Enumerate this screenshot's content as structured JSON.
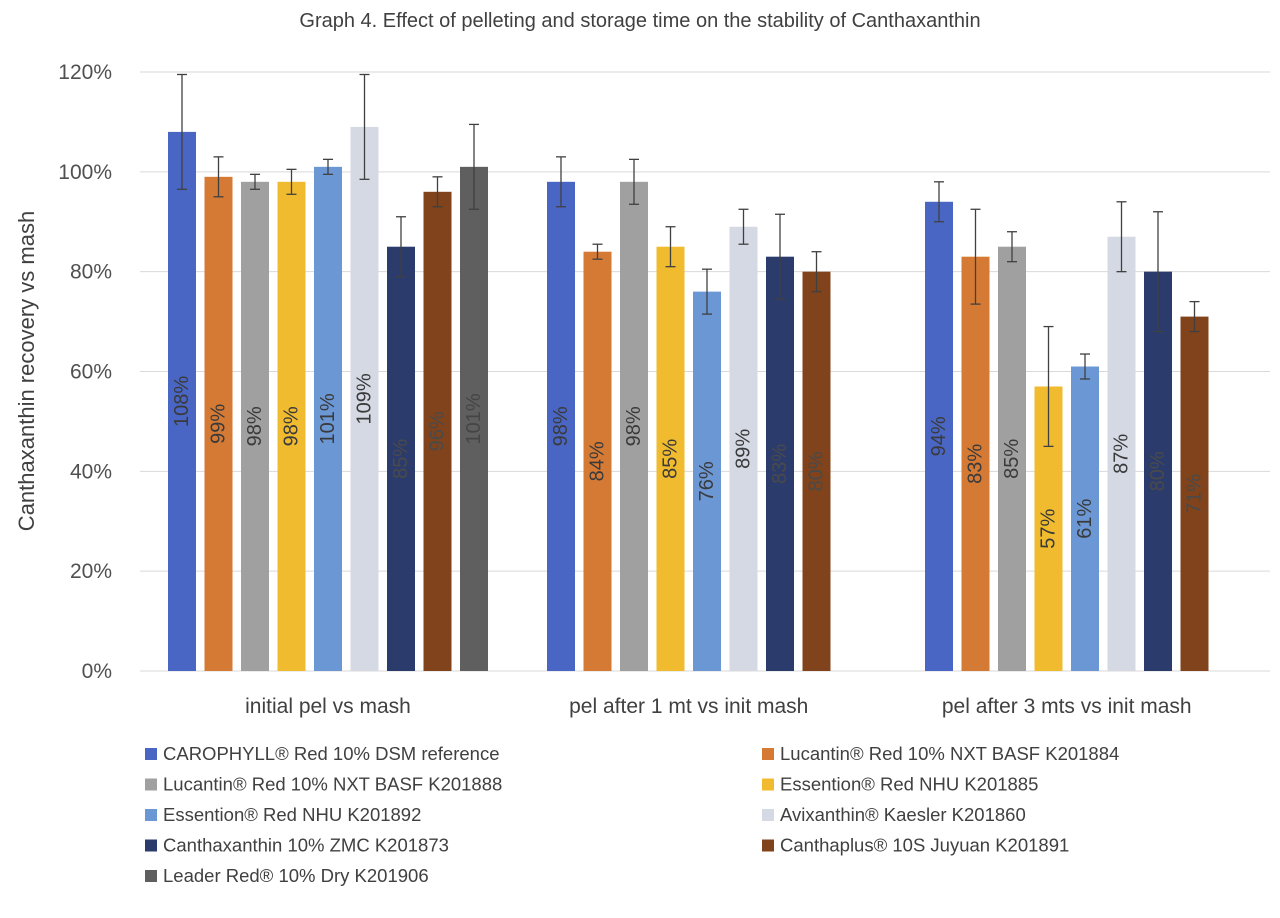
{
  "chart_data": {
    "type": "bar",
    "title": "Graph 4. Effect of pelleting and storage time on the stability of Canthaxanthin",
    "xlabel": "",
    "ylabel": "Canthaxanthin recovery vs mash",
    "ylim": [
      0,
      120
    ],
    "yticks": [
      0,
      20,
      40,
      60,
      80,
      100,
      120
    ],
    "ytick_labels": [
      "0%",
      "20%",
      "40%",
      "60%",
      "80%",
      "100%",
      "120%"
    ],
    "grid": true,
    "legend_position": "bottom",
    "categories": [
      "initial pel vs mash",
      "pel after 1 mt vs init mash",
      "pel after 3 mts vs init mash"
    ],
    "series": [
      {
        "name": "CAROPHYLL® Red 10% DSM reference",
        "color": "#4a66c4",
        "label_color": "#3a3a3a",
        "values": [
          108,
          98,
          94
        ],
        "labels": [
          "108%",
          "98%",
          "94%"
        ],
        "errors": [
          11.5,
          5,
          4
        ]
      },
      {
        "name": "Lucantin® Red 10% NXT BASF K201884",
        "color": "#d57a35",
        "label_color": "#3a3a3a",
        "values": [
          99,
          84,
          83
        ],
        "labels": [
          "99%",
          "84%",
          "83%"
        ],
        "errors": [
          4,
          1.5,
          9.5
        ]
      },
      {
        "name": "Lucantin® Red 10% NXT BASF K201888",
        "color": "#a0a0a0",
        "label_color": "#3a3a3a",
        "values": [
          98,
          98,
          85
        ],
        "labels": [
          "98%",
          "98%",
          "85%"
        ],
        "errors": [
          1.5,
          4.5,
          3
        ]
      },
      {
        "name": "Essention® Red NHU K201885",
        "color": "#f0bb2f",
        "label_color": "#3a3a3a",
        "values": [
          98,
          85,
          57
        ],
        "labels": [
          "98%",
          "85%",
          "57%"
        ],
        "errors": [
          2.5,
          4,
          12
        ]
      },
      {
        "name": "Essention® Red NHU K201892",
        "color": "#6b97d5",
        "label_color": "#3a3a3a",
        "values": [
          101,
          76,
          61
        ],
        "labels": [
          "101%",
          "76%",
          "61%"
        ],
        "errors": [
          1.5,
          4.5,
          2.5
        ]
      },
      {
        "name": "Avixanthin® Kaesler K201860",
        "color": "#d5d9e4",
        "label_color": "#3a3a3a",
        "values": [
          109,
          89,
          87
        ],
        "labels": [
          "109%",
          "89%",
          "87%"
        ],
        "errors": [
          10.5,
          3.5,
          7
        ]
      },
      {
        "name": "Canthaxanthin 10% ZMC K201873",
        "color": "#2b3b6c",
        "label_color": "#4a4a4a",
        "values": [
          85,
          83,
          80
        ],
        "labels": [
          "85%",
          "83%",
          "80%"
        ],
        "errors": [
          6,
          8.5,
          12
        ]
      },
      {
        "name": "Canthaplus® 10S Juyuan K201891",
        "color": "#80431b",
        "label_color": "#4a4a4a",
        "values": [
          96,
          80,
          71
        ],
        "labels": [
          "96%",
          "80%",
          "71%"
        ],
        "errors": [
          3,
          4,
          3
        ]
      },
      {
        "name": "Leader Red® 10% Dry K201906",
        "color": "#5f5f5f",
        "label_color": "#454545",
        "values": [
          101,
          null,
          null
        ],
        "labels": [
          "101%",
          null,
          null
        ],
        "errors": [
          8.5,
          null,
          null
        ]
      }
    ]
  }
}
